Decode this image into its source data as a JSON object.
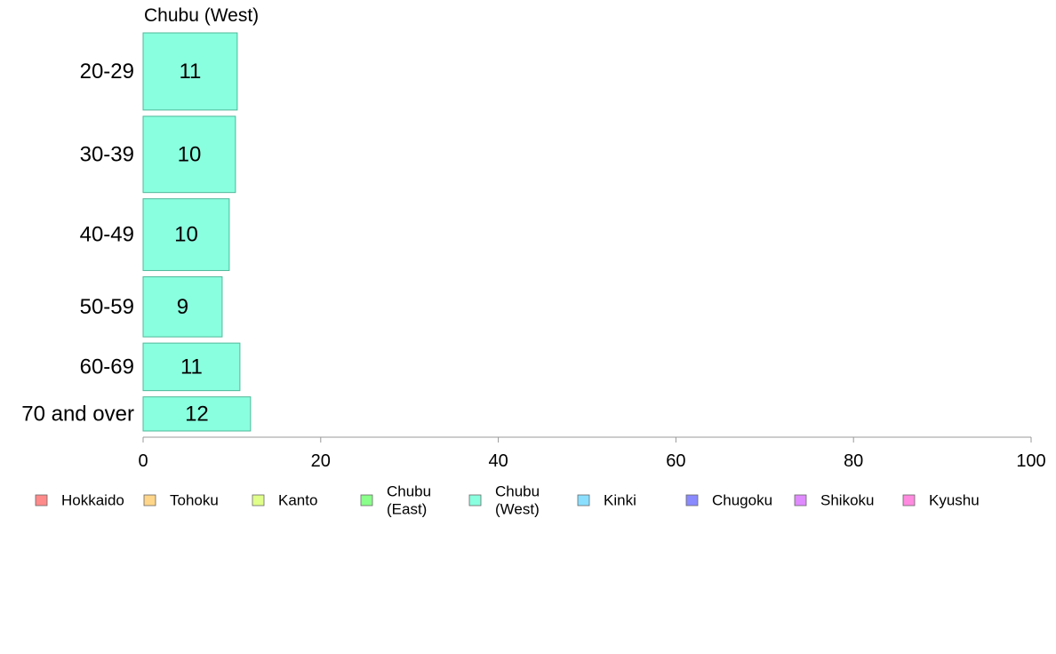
{
  "chart_data": {
    "type": "bar",
    "orientation": "horizontal",
    "title": "Chubu (West)",
    "categories": [
      "20-29",
      "30-39",
      "40-49",
      "50-59",
      "60-69",
      "70 and over"
    ],
    "values": [
      11,
      10,
      10,
      9,
      11,
      12
    ],
    "value_labels": [
      "11",
      "10",
      "10",
      "9",
      "11",
      "12"
    ],
    "bar_extent": [
      10.6,
      10.4,
      9.7,
      8.9,
      10.9,
      12.1
    ],
    "bar_weight": [
      86,
      85,
      80,
      67,
      53,
      38
    ],
    "xlim": [
      0,
      100
    ],
    "xticks": [
      0,
      20,
      40,
      60,
      80,
      100
    ],
    "xtick_labels": [
      "0",
      "20",
      "40",
      "60",
      "80",
      "100"
    ],
    "grid": false,
    "bar_color": "#8affdf",
    "bar_stroke": "#4fb89a",
    "legend": {
      "placement": "bottom",
      "entries": [
        {
          "lines": [
            "Hokkaido"
          ],
          "color": "#ff8a8a"
        },
        {
          "lines": [
            "Tohoku"
          ],
          "color": "#ffd68a"
        },
        {
          "lines": [
            "Kanto"
          ],
          "color": "#e0ff8a"
        },
        {
          "lines": [
            "Chubu",
            "(East)"
          ],
          "color": "#8aff8a"
        },
        {
          "lines": [
            "Chubu",
            "(West)"
          ],
          "color": "#8affdf"
        },
        {
          "lines": [
            "Kinki"
          ],
          "color": "#8adfff"
        },
        {
          "lines": [
            "Chugoku"
          ],
          "color": "#8a8aff"
        },
        {
          "lines": [
            "Shikoku"
          ],
          "color": "#df8aff"
        },
        {
          "lines": [
            "Kyushu"
          ],
          "color": "#ff8adf"
        }
      ]
    }
  }
}
